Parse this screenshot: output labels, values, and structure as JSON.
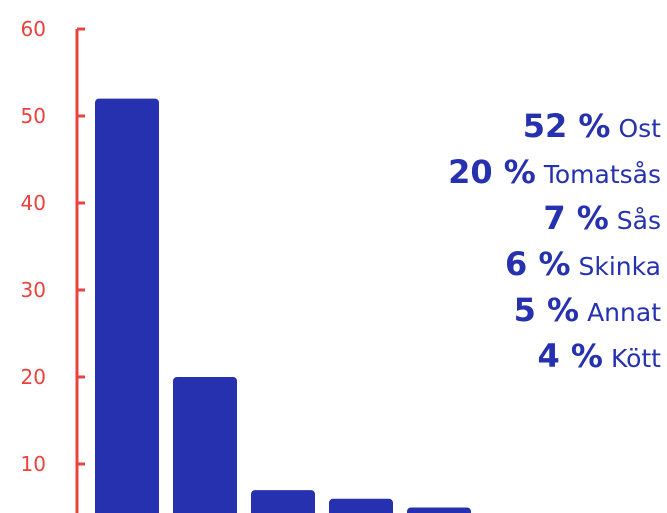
{
  "colors": {
    "axis": "#e8433e",
    "bars": "#2631b0",
    "legend_text": "#2631b0"
  },
  "chart_data": {
    "type": "bar",
    "title": "",
    "xlabel": "",
    "ylabel": "",
    "ylim": [
      0,
      60
    ],
    "yticks": [
      10,
      20,
      30,
      40,
      50,
      60
    ],
    "grid": false,
    "legend_position": "right",
    "categories": [
      "Ost",
      "Tomatsås",
      "Sås",
      "Skinka",
      "Annat",
      "Kött"
    ],
    "values": [
      52,
      20,
      7,
      6,
      5,
      4
    ],
    "labels": [
      {
        "pct": "52 %",
        "name": "Ost"
      },
      {
        "pct": "20 %",
        "name": "Tomatsås"
      },
      {
        "pct": "7 %",
        "name": "Sås"
      },
      {
        "pct": "6 %",
        "name": "Skinka"
      },
      {
        "pct": "5 %",
        "name": "Annat"
      },
      {
        "pct": "4 %",
        "name": "Kött"
      }
    ]
  }
}
